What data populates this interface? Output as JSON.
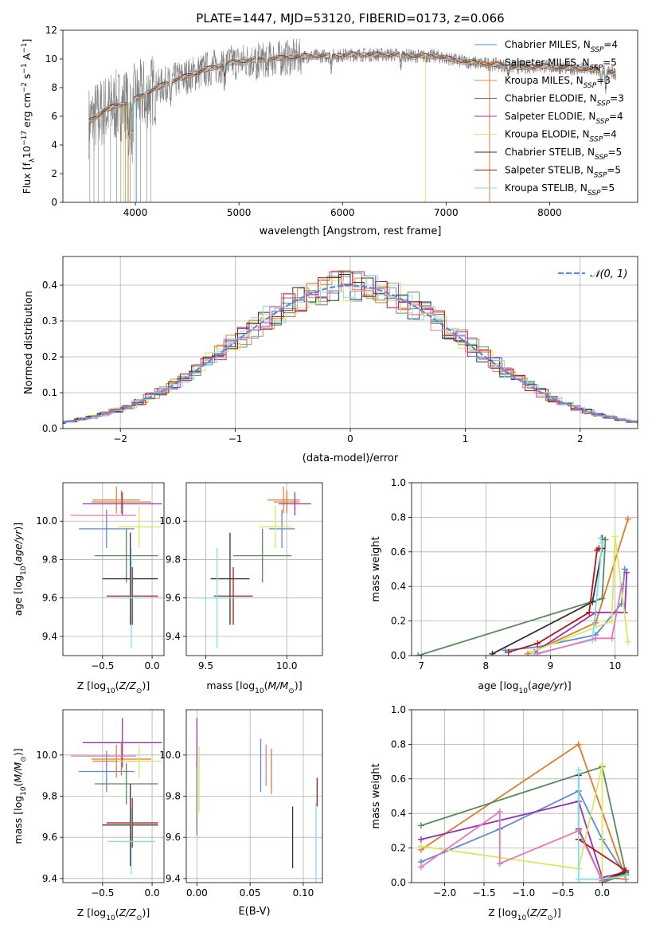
{
  "colors": {
    "Chabrier MILES": "#5b8bd9",
    "Salpeter MILES": "#e07a2a",
    "Kroupa MILES": "#d98c3a",
    "Chabrier ELODIE": "#5a8a5a",
    "Salpeter ELODIE": "#9b30b0",
    "Kroupa ELODIE": "#d8e860",
    "Chabrier STELIB": "#333333",
    "Salpeter STELIB": "#b01818",
    "Kroupa STELIB": "#80e0e8",
    "Pink": "#e878b8",
    "grid": "#b0b0b0",
    "spectrum": "#808080"
  },
  "chart_data": [
    {
      "id": "spectrum",
      "type": "line",
      "title": "PLATE=1447, MJD=53120, FIBERID=0173, z=0.066",
      "xlabel": "wavelength [Angstrom, rest frame]",
      "ylabel": "Flux [fλ10⁻¹⁷ erg cm⁻² s⁻¹ A⁻¹]",
      "xlim": [
        3300,
        8850
      ],
      "ylim": [
        0,
        12
      ],
      "xticks": [
        4000,
        5000,
        6000,
        7000,
        8000
      ],
      "yticks": [
        0,
        2,
        4,
        6,
        8,
        10,
        12
      ],
      "continuum": [
        [
          3550,
          5.6
        ],
        [
          3700,
          6.4
        ],
        [
          3800,
          6.7
        ],
        [
          3950,
          7.0
        ],
        [
          4100,
          7.6
        ],
        [
          4300,
          8.3
        ],
        [
          4500,
          8.8
        ],
        [
          4700,
          9.3
        ],
        [
          4900,
          9.7
        ],
        [
          5100,
          9.9
        ],
        [
          5300,
          10.0
        ],
        [
          5500,
          10.1
        ],
        [
          5700,
          10.2
        ],
        [
          5900,
          10.2
        ],
        [
          6100,
          10.3
        ],
        [
          6300,
          10.3
        ],
        [
          6500,
          10.3
        ],
        [
          6700,
          10.2
        ],
        [
          6900,
          10.2
        ],
        [
          7100,
          9.9
        ],
        [
          7300,
          9.7
        ],
        [
          7500,
          9.6
        ],
        [
          7700,
          9.4
        ],
        [
          7900,
          9.5
        ],
        [
          8100,
          9.4
        ],
        [
          8300,
          9.3
        ],
        [
          8500,
          9.2
        ],
        [
          8640,
          9.0
        ]
      ],
      "legend": [
        {
          "label": "Chabrier MILES, N_SSP=4",
          "text": "Chabrier MILES, N",
          "sub": "SSP",
          "tail": "=4",
          "color": "Chabrier MILES"
        },
        {
          "label": "Salpeter MILES, N_SSP=5",
          "text": "Salpeter MILES, N",
          "sub": "SSP",
          "tail": "=5",
          "color": "Salpeter MILES"
        },
        {
          "label": "Kroupa MILES, N_SSP=3",
          "text": "Kroupa MILES, N",
          "sub": "SSP",
          "tail": "=3",
          "color": "Kroupa MILES"
        },
        {
          "label": "Chabrier ELODIE, N_SSP=3",
          "text": "Chabrier ELODIE, N",
          "sub": "SSP",
          "tail": "=3",
          "color": "Chabrier ELODIE"
        },
        {
          "label": "Salpeter ELODIE, N_SSP=4",
          "text": "Salpeter ELODIE, N",
          "sub": "SSP",
          "tail": "=4",
          "color": "Salpeter ELODIE"
        },
        {
          "label": "Kroupa ELODIE, N_SSP=4",
          "text": "Kroupa ELODIE, N",
          "sub": "SSP",
          "tail": "=4",
          "color": "Kroupa ELODIE"
        },
        {
          "label": "Chabrier STELIB, N_SSP=5",
          "text": "Chabrier STELIB, N",
          "sub": "SSP",
          "tail": "=5",
          "color": "Chabrier STELIB"
        },
        {
          "label": "Salpeter STELIB, N_SSP=5",
          "text": "Salpeter STELIB, N",
          "sub": "SSP",
          "tail": "=5",
          "color": "Salpeter STELIB"
        },
        {
          "label": "Kroupa STELIB, N_SSP=5",
          "text": "Kroupa STELIB, N",
          "sub": "SSP",
          "tail": "=5",
          "color": "Kroupa STELIB"
        }
      ]
    },
    {
      "id": "residuals",
      "type": "line",
      "xlabel": "(data-model)/error",
      "ylabel": "Normed distribution",
      "xlim": [
        -2.5,
        2.5
      ],
      "ylim": [
        0,
        0.48
      ],
      "xticks": [
        -2,
        -1,
        0,
        1,
        2
      ],
      "yticks": [
        0.0,
        0.1,
        0.2,
        0.3,
        0.4
      ],
      "legend": "𝒩(0, 1)",
      "gaussian": {
        "mu": 0,
        "sigma": 1
      }
    },
    {
      "id": "age_vs_Z",
      "type": "scatter",
      "xlabel": "Z [log10(Z/Z⊙)]",
      "ylabel": "age  [log10(age/yr)]",
      "xlim": [
        -0.9,
        0.12
      ],
      "ylim": [
        9.3,
        10.2
      ],
      "xticks": [
        -0.5,
        0.0
      ],
      "yticks": [
        9.4,
        9.6,
        9.8,
        10.0
      ],
      "points": [
        {
          "color": "Chabrier MILES",
          "x": -0.46,
          "xe": 0.28,
          "y": 9.96,
          "ye": 0.1
        },
        {
          "color": "Salpeter MILES",
          "x": -0.31,
          "xe": 0.3,
          "y": 10.1,
          "ye": 0.06
        },
        {
          "color": "Kroupa MILES",
          "x": -0.36,
          "xe": 0.24,
          "y": 10.11,
          "ye": 0.07
        },
        {
          "color": "Chabrier ELODIE",
          "x": -0.26,
          "xe": 0.32,
          "y": 9.82,
          "ye": 0.14
        },
        {
          "color": "Salpeter ELODIE",
          "x": -0.3,
          "xe": 0.4,
          "y": 10.09,
          "ye": 0.06
        },
        {
          "color": "Kroupa ELODIE",
          "x": -0.13,
          "xe": 0.22,
          "y": 9.97,
          "ye": 0.11
        },
        {
          "color": "Chabrier STELIB",
          "x": -0.22,
          "xe": 0.28,
          "y": 9.7,
          "ye": 0.24
        },
        {
          "color": "Salpeter STELIB",
          "x": -0.2,
          "xe": 0.26,
          "y": 9.61,
          "ye": 0.15
        },
        {
          "color": "Kroupa STELIB",
          "x": -0.21,
          "xe": 0.1,
          "y": 9.6,
          "ye": 0.26
        },
        {
          "color": "Pink",
          "x": -0.49,
          "xe": 0.33,
          "y": 10.03,
          "ye": 0.0
        }
      ]
    },
    {
      "id": "age_vs_mass",
      "type": "scatter",
      "xlabel": "mass [log10(M/M⊙)]",
      "xlim": [
        9.38,
        10.22
      ],
      "ylim": [
        9.3,
        10.2
      ],
      "xticks": [
        9.5,
        10.0
      ],
      "yticks": [
        9.4,
        9.6,
        9.8,
        10.0
      ],
      "points": [
        {
          "color": "Chabrier MILES",
          "x": 9.97,
          "xe": 0.08,
          "y": 9.96,
          "ye": 0.1
        },
        {
          "color": "Salpeter MILES",
          "x": 10.0,
          "xe": 0.08,
          "y": 10.1,
          "ye": 0.06
        },
        {
          "color": "Kroupa MILES",
          "x": 9.98,
          "xe": 0.1,
          "y": 10.11,
          "ye": 0.07
        },
        {
          "color": "Chabrier ELODIE",
          "x": 9.85,
          "xe": 0.18,
          "y": 9.82,
          "ye": 0.14
        },
        {
          "color": "Salpeter ELODIE",
          "x": 10.05,
          "xe": 0.1,
          "y": 10.09,
          "ye": 0.06
        },
        {
          "color": "Kroupa ELODIE",
          "x": 9.93,
          "xe": 0.1,
          "y": 9.97,
          "ye": 0.11
        },
        {
          "color": "Chabrier STELIB",
          "x": 9.65,
          "xe": 0.12,
          "y": 9.7,
          "ye": 0.24
        },
        {
          "color": "Salpeter STELIB",
          "x": 9.67,
          "xe": 0.12,
          "y": 9.61,
          "ye": 0.15
        },
        {
          "color": "Kroupa STELIB",
          "x": 9.57,
          "xe": 0.12,
          "y": 9.6,
          "ye": 0.26
        }
      ]
    },
    {
      "id": "weight_vs_age",
      "type": "line",
      "xlabel": "age  [log10(age/yr)]",
      "ylabel": "mass weight",
      "xlim": [
        6.85,
        10.35
      ],
      "ylim": [
        0,
        1.0
      ],
      "xticks": [
        7,
        8,
        9,
        10
      ],
      "yticks": [
        0.0,
        0.2,
        0.4,
        0.6,
        0.8,
        1.0
      ],
      "series": [
        {
          "color": "Chabrier MILES",
          "x": [
            8.3,
            8.8,
            9.7,
            10.1,
            10.15
          ],
          "y": [
            0.03,
            0.05,
            0.12,
            0.3,
            0.5
          ]
        },
        {
          "color": "Salpeter MILES",
          "x": [
            8.65,
            9.7,
            10.2
          ],
          "y": [
            0.01,
            0.19,
            0.79
          ]
        },
        {
          "color": "Chabrier ELODIE",
          "x": [
            6.95,
            9.8,
            9.85
          ],
          "y": [
            0.0,
            0.33,
            0.67
          ]
        },
        {
          "color": "Salpeter ELODIE",
          "x": [
            8.75,
            9.7,
            10.15,
            10.18
          ],
          "y": [
            0.02,
            0.25,
            0.25,
            0.48
          ]
        },
        {
          "color": "Kroupa ELODIE",
          "x": [
            8.7,
            9.95,
            10.0,
            10.2
          ],
          "y": [
            0.02,
            0.2,
            0.69,
            0.08
          ]
        },
        {
          "color": "Chabrier STELIB",
          "x": [
            8.1,
            9.65,
            9.8,
            9.8
          ],
          "y": [
            0.01,
            0.31,
            0.62,
            0.68
          ]
        },
        {
          "color": "Salpeter STELIB",
          "x": [
            8.35,
            8.8,
            9.6,
            9.72,
            9.75
          ],
          "y": [
            0.02,
            0.07,
            0.25,
            0.61,
            0.62
          ]
        },
        {
          "color": "Kroupa STELIB",
          "x": [
            8.75,
            9.65,
            9.8,
            9.78
          ],
          "y": [
            0.01,
            0.09,
            0.65,
            0.68
          ]
        },
        {
          "color": "Pink",
          "x": [
            8.8,
            9.7,
            9.95,
            10.1
          ],
          "y": [
            0.01,
            0.1,
            0.1,
            0.4
          ]
        }
      ]
    },
    {
      "id": "mass_vs_Z",
      "type": "scatter",
      "xlabel": "Z [log10(Z/Z⊙)]",
      "ylabel": "mass [log10(M/M⊙)]",
      "xlim": [
        -0.9,
        0.12
      ],
      "ylim": [
        9.38,
        10.22
      ],
      "xticks": [
        -0.5,
        0.0
      ],
      "yticks": [
        9.4,
        9.6,
        9.8,
        10.0
      ],
      "points": [
        {
          "color": "Chabrier MILES",
          "x": -0.46,
          "xe": 0.28,
          "y": 9.92,
          "ye": 0.1
        },
        {
          "color": "Salpeter MILES",
          "x": -0.31,
          "xe": 0.3,
          "y": 9.98,
          "ye": 0.08
        },
        {
          "color": "Kroupa MILES",
          "x": -0.36,
          "xe": 0.24,
          "y": 9.97,
          "ye": 0.08
        },
        {
          "color": "Chabrier ELODIE",
          "x": -0.26,
          "xe": 0.32,
          "y": 9.86,
          "ye": 0.1
        },
        {
          "color": "Salpeter ELODIE",
          "x": -0.3,
          "xe": 0.4,
          "y": 10.06,
          "ye": 0.12
        },
        {
          "color": "Kroupa ELODIE",
          "x": -0.13,
          "xe": 0.22,
          "y": 9.97,
          "ye": 0.08
        },
        {
          "color": "Chabrier STELIB",
          "x": -0.22,
          "xe": 0.28,
          "y": 9.66,
          "ye": 0.2
        },
        {
          "color": "Salpeter STELIB",
          "x": -0.2,
          "xe": 0.26,
          "y": 9.67,
          "ye": 0.12
        },
        {
          "color": "Kroupa STELIB",
          "x": -0.21,
          "xe": 0.24,
          "y": 9.58,
          "ye": 0.16
        },
        {
          "color": "Pink",
          "x": -0.49,
          "xe": 0.33,
          "y": 9.995,
          "ye": 0.0
        }
      ]
    },
    {
      "id": "mass_vs_ebv",
      "type": "scatter",
      "xlabel": "E(B-V)",
      "xlim": [
        -0.01,
        0.118
      ],
      "ylim": [
        9.38,
        10.22
      ],
      "xticks": [
        0.0,
        0.05,
        0.1
      ],
      "yticks": [
        9.4,
        9.6,
        9.8,
        10.0
      ],
      "points": [
        {
          "color": "Chabrier MILES",
          "x": 0.06,
          "y": 9.95,
          "ye": 0.13
        },
        {
          "color": "Salpeter MILES",
          "x": 0.07,
          "y": 9.92,
          "ye": 0.11
        },
        {
          "color": "Chabrier ELODIE",
          "x": 0.0,
          "y": 9.79,
          "ye": 0.18
        },
        {
          "color": "Salpeter ELODIE",
          "x": 0.0,
          "y": 10.06,
          "ye": 0.12
        },
        {
          "color": "Kroupa ELODIE",
          "x": 0.002,
          "y": 9.88,
          "ye": 0.16
        },
        {
          "color": "Chabrier STELIB",
          "x": 0.09,
          "y": 9.6,
          "ye": 0.15
        },
        {
          "color": "Salpeter STELIB",
          "x": 0.113,
          "y": 9.82,
          "ye": 0.07
        },
        {
          "color": "Kroupa STELIB",
          "x": 0.112,
          "y": 9.57,
          "ye": 0.2
        },
        {
          "color": "Pink",
          "x": 0.065,
          "y": 9.95,
          "ye": 0.1
        }
      ]
    },
    {
      "id": "weight_vs_Z",
      "type": "line",
      "xlabel": "Z [log10(Z/Z⊙)]",
      "ylabel": "mass weight",
      "xlim": [
        -2.42,
        0.45
      ],
      "ylim": [
        0,
        1.0
      ],
      "xticks": [
        -2.0,
        -1.5,
        -1.0,
        -0.5,
        0.0
      ],
      "yticks": [
        0.0,
        0.2,
        0.4,
        0.6,
        0.8,
        1.0
      ],
      "series": [
        {
          "color": "Chabrier MILES",
          "x": [
            -2.3,
            -1.3,
            -0.3,
            0.0,
            0.3
          ],
          "y": [
            0.12,
            0.31,
            0.53,
            0.25,
            0.04
          ]
        },
        {
          "color": "Salpeter MILES",
          "x": [
            -2.3,
            -0.3,
            0.3,
            0.0
          ],
          "y": [
            0.19,
            0.8,
            0.02,
            0.03
          ]
        },
        {
          "color": "Chabrier ELODIE",
          "x": [
            -2.3,
            0.0,
            0.3,
            0.0
          ],
          "y": [
            0.33,
            0.67,
            0.05,
            0.0
          ]
        },
        {
          "color": "Salpeter ELODIE",
          "x": [
            -2.3,
            -0.3,
            0.0,
            0.3
          ],
          "y": [
            0.25,
            0.47,
            0.03,
            0.06
          ]
        },
        {
          "color": "Kroupa ELODIE",
          "x": [
            -2.3,
            -0.3,
            0.0,
            0.0,
            0.3
          ],
          "y": [
            0.21,
            0.08,
            0.68,
            0.02,
            0.06
          ]
        },
        {
          "color": "Chabrier STELIB",
          "x": [
            -0.3,
            -0.3,
            0.0,
            0.3
          ],
          "y": [
            0.62,
            0.31,
            0.01,
            0.06
          ]
        },
        {
          "color": "Salpeter STELIB",
          "x": [
            -0.3,
            0.3,
            0.0
          ],
          "y": [
            0.25,
            0.07,
            0.01
          ]
        },
        {
          "color": "Kroupa STELIB",
          "x": [
            -0.3,
            -0.3,
            0.0,
            0.3
          ],
          "y": [
            0.65,
            0.02,
            0.02,
            0.04
          ]
        },
        {
          "color": "Pink",
          "x": [
            -2.3,
            -1.3,
            -1.3,
            -0.3,
            0.0
          ],
          "y": [
            0.09,
            0.41,
            0.11,
            0.3,
            0.01
          ]
        }
      ]
    }
  ]
}
